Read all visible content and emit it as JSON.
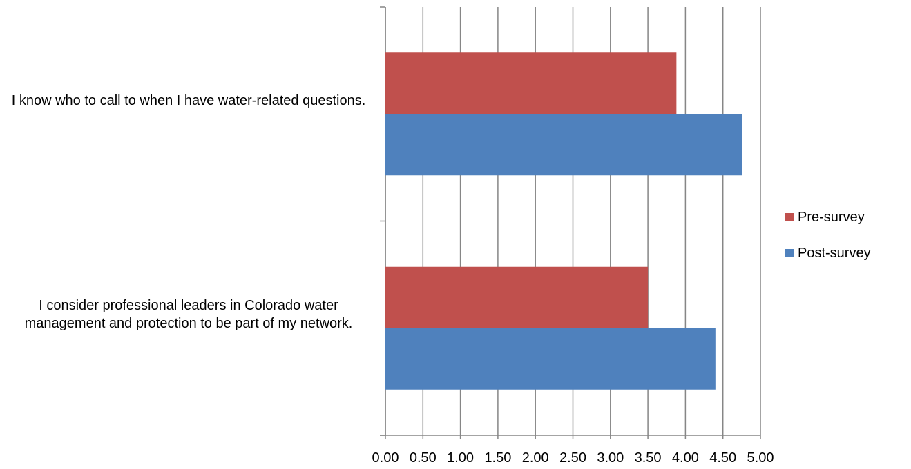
{
  "chart_data": {
    "type": "bar",
    "orientation": "horizontal",
    "categories": [
      "I know who to call to when I have water-related questions.",
      "I consider professional leaders in Colorado water management and protection to be part of my network."
    ],
    "series": [
      {
        "name": "Pre-survey",
        "color": "#C0504D",
        "values": [
          3.88,
          3.5
        ]
      },
      {
        "name": "Post-survey",
        "color": "#4F81BD",
        "values": [
          4.76,
          4.4
        ]
      }
    ],
    "xlim": [
      0,
      5
    ],
    "xticks": [
      "0.00",
      "0.50",
      "1.00",
      "1.50",
      "2.00",
      "2.50",
      "3.00",
      "3.50",
      "4.00",
      "4.50",
      "5.00"
    ],
    "grid": "vertical",
    "legend_position": "right"
  }
}
